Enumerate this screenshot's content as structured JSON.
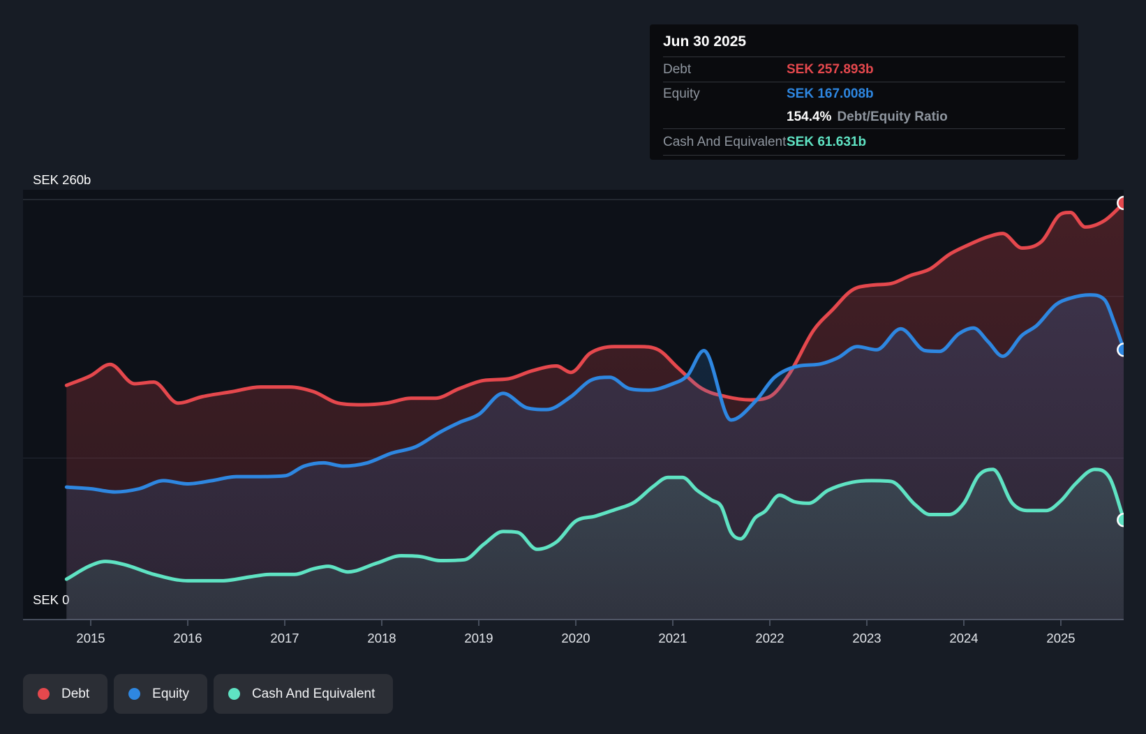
{
  "colors": {
    "debt": "#e5484d",
    "equity": "#2e87e1",
    "cash": "#5fe3c3",
    "grid_top": "#394049",
    "grid_mid": "#232934",
    "axis": "#474e5c",
    "axis_text": "#ffffff",
    "year_text": "#e4e7ec",
    "plot_bg": "#0d1118"
  },
  "tooltip": {
    "title": "Jun 30 2025",
    "rows": [
      {
        "label": "Debt",
        "value": "SEK 257.893b"
      },
      {
        "label": "Equity",
        "value": "SEK 167.008b"
      },
      {
        "value_bold": "154.4%",
        "value_rest": "Debt/Equity Ratio"
      },
      {
        "label": "Cash And Equivalent",
        "value": "SEK 61.631b"
      }
    ]
  },
  "legend": [
    {
      "label": "Debt"
    },
    {
      "label": "Equity"
    },
    {
      "label": "Cash And Equivalent"
    }
  ],
  "axis": {
    "y_top_label": "SEK 260b",
    "y_bottom_label": "SEK 0",
    "years": [
      "2015",
      "2016",
      "2017",
      "2018",
      "2019",
      "2020",
      "2021",
      "2022",
      "2023",
      "2024",
      "2025"
    ]
  },
  "chart_data": {
    "type": "area",
    "title": "",
    "xlabel": "Year",
    "ylabel": "SEK (billions)",
    "x_unit": "decimal year",
    "xlim": [
      2014.75,
      2025.65
    ],
    "ylim": [
      0,
      260
    ],
    "grid": true,
    "legend_position": "bottom-left",
    "gridlines": [
      {
        "value": 260,
        "label": "SEK 260b",
        "style": "top"
      },
      {
        "value": 200,
        "style": "mid"
      },
      {
        "value": 100,
        "style": "mid"
      },
      {
        "value": 0,
        "label": "SEK 0",
        "style": "axis"
      }
    ],
    "last_point": {
      "date": "Jun 30 2025",
      "debt": 257.893,
      "equity": 167.008,
      "cash": 61.631,
      "debt_equity_ratio_pct": 154.4
    },
    "series": [
      {
        "name": "Debt",
        "color_key": "debt",
        "points": [
          [
            2014.75,
            145
          ],
          [
            2015.0,
            151
          ],
          [
            2015.2,
            158
          ],
          [
            2015.45,
            146
          ],
          [
            2015.65,
            147
          ],
          [
            2015.9,
            134
          ],
          [
            2016.15,
            138
          ],
          [
            2016.45,
            141
          ],
          [
            2016.75,
            144
          ],
          [
            2017.05,
            144
          ],
          [
            2017.3,
            141
          ],
          [
            2017.55,
            134
          ],
          [
            2017.8,
            133
          ],
          [
            2018.05,
            134
          ],
          [
            2018.3,
            137
          ],
          [
            2018.55,
            137
          ],
          [
            2018.8,
            143
          ],
          [
            2019.05,
            148
          ],
          [
            2019.3,
            149
          ],
          [
            2019.55,
            154
          ],
          [
            2019.8,
            157
          ],
          [
            2019.95,
            153
          ],
          [
            2020.15,
            165
          ],
          [
            2020.4,
            169
          ],
          [
            2020.65,
            169
          ],
          [
            2020.85,
            167
          ],
          [
            2021.05,
            156
          ],
          [
            2021.3,
            143
          ],
          [
            2021.55,
            138
          ],
          [
            2021.8,
            136
          ],
          [
            2022.0,
            138
          ],
          [
            2022.2,
            152
          ],
          [
            2022.45,
            179
          ],
          [
            2022.65,
            192
          ],
          [
            2022.85,
            204
          ],
          [
            2023.05,
            207
          ],
          [
            2023.25,
            208
          ],
          [
            2023.45,
            213
          ],
          [
            2023.65,
            217
          ],
          [
            2023.85,
            226
          ],
          [
            2024.05,
            232
          ],
          [
            2024.25,
            237
          ],
          [
            2024.4,
            239
          ],
          [
            2024.6,
            230
          ],
          [
            2024.8,
            234
          ],
          [
            2025.0,
            251
          ],
          [
            2025.1,
            252
          ],
          [
            2025.25,
            243
          ],
          [
            2025.45,
            247
          ],
          [
            2025.65,
            257.893
          ]
        ]
      },
      {
        "name": "Equity",
        "color_key": "equity",
        "points": [
          [
            2014.75,
            82
          ],
          [
            2015.0,
            81
          ],
          [
            2015.25,
            79
          ],
          [
            2015.5,
            81
          ],
          [
            2015.75,
            86
          ],
          [
            2016.0,
            84
          ],
          [
            2016.25,
            86
          ],
          [
            2016.5,
            88.5
          ],
          [
            2016.75,
            88.5
          ],
          [
            2017.0,
            89
          ],
          [
            2017.2,
            95
          ],
          [
            2017.4,
            97
          ],
          [
            2017.6,
            95
          ],
          [
            2017.85,
            97
          ],
          [
            2018.1,
            103
          ],
          [
            2018.35,
            107
          ],
          [
            2018.6,
            116
          ],
          [
            2018.8,
            122
          ],
          [
            2019.0,
            127
          ],
          [
            2019.25,
            140
          ],
          [
            2019.5,
            131
          ],
          [
            2019.7,
            130
          ],
          [
            2019.95,
            138
          ],
          [
            2020.15,
            148
          ],
          [
            2020.35,
            150
          ],
          [
            2020.55,
            143
          ],
          [
            2020.75,
            142
          ],
          [
            2021.0,
            146
          ],
          [
            2021.15,
            151
          ],
          [
            2021.32,
            166.5
          ],
          [
            2021.6,
            123.5
          ],
          [
            2021.85,
            135
          ],
          [
            2022.05,
            150
          ],
          [
            2022.3,
            157
          ],
          [
            2022.5,
            158
          ],
          [
            2022.7,
            162
          ],
          [
            2022.9,
            169
          ],
          [
            2023.1,
            167
          ],
          [
            2023.35,
            180
          ],
          [
            2023.6,
            166.5
          ],
          [
            2023.75,
            166
          ],
          [
            2023.95,
            177
          ],
          [
            2024.1,
            180.5
          ],
          [
            2024.25,
            172
          ],
          [
            2024.4,
            163
          ],
          [
            2024.6,
            176
          ],
          [
            2024.75,
            182
          ],
          [
            2024.95,
            195
          ],
          [
            2025.1,
            199
          ],
          [
            2025.3,
            201
          ],
          [
            2025.45,
            198
          ],
          [
            2025.55,
            184
          ],
          [
            2025.65,
            167.008
          ]
        ]
      },
      {
        "name": "Cash And Equivalent",
        "color_key": "cash",
        "points": [
          [
            2014.75,
            25
          ],
          [
            2015.0,
            33.5
          ],
          [
            2015.15,
            36
          ],
          [
            2015.35,
            34
          ],
          [
            2015.65,
            28
          ],
          [
            2016.0,
            24
          ],
          [
            2016.35,
            24
          ],
          [
            2016.65,
            26.5
          ],
          [
            2016.85,
            28
          ],
          [
            2017.1,
            28
          ],
          [
            2017.3,
            31.5
          ],
          [
            2017.45,
            33
          ],
          [
            2017.65,
            29.5
          ],
          [
            2017.95,
            35
          ],
          [
            2018.2,
            39.5
          ],
          [
            2018.4,
            39
          ],
          [
            2018.6,
            36.5
          ],
          [
            2018.85,
            37
          ],
          [
            2019.05,
            46.5
          ],
          [
            2019.25,
            54.5
          ],
          [
            2019.4,
            54
          ],
          [
            2019.6,
            43.5
          ],
          [
            2019.8,
            48
          ],
          [
            2020.0,
            61
          ],
          [
            2020.2,
            64
          ],
          [
            2020.4,
            68
          ],
          [
            2020.6,
            72.5
          ],
          [
            2020.8,
            82.5
          ],
          [
            2020.95,
            88
          ],
          [
            2021.1,
            88
          ],
          [
            2021.25,
            80
          ],
          [
            2021.4,
            74
          ],
          [
            2021.5,
            70
          ],
          [
            2021.6,
            54
          ],
          [
            2021.7,
            50
          ],
          [
            2021.85,
            63
          ],
          [
            2021.95,
            67
          ],
          [
            2022.1,
            77
          ],
          [
            2022.25,
            73
          ],
          [
            2022.4,
            72
          ],
          [
            2022.6,
            80
          ],
          [
            2022.85,
            85
          ],
          [
            2023.05,
            86
          ],
          [
            2023.25,
            85.5
          ],
          [
            2023.5,
            71
          ],
          [
            2023.65,
            65
          ],
          [
            2023.85,
            65
          ],
          [
            2024.0,
            72
          ],
          [
            2024.15,
            89
          ],
          [
            2024.3,
            93
          ],
          [
            2024.5,
            72
          ],
          [
            2024.65,
            67.5
          ],
          [
            2024.85,
            67.5
          ],
          [
            2025.0,
            73.5
          ],
          [
            2025.15,
            84
          ],
          [
            2025.35,
            93
          ],
          [
            2025.5,
            88
          ],
          [
            2025.65,
            61.631
          ]
        ]
      }
    ]
  }
}
